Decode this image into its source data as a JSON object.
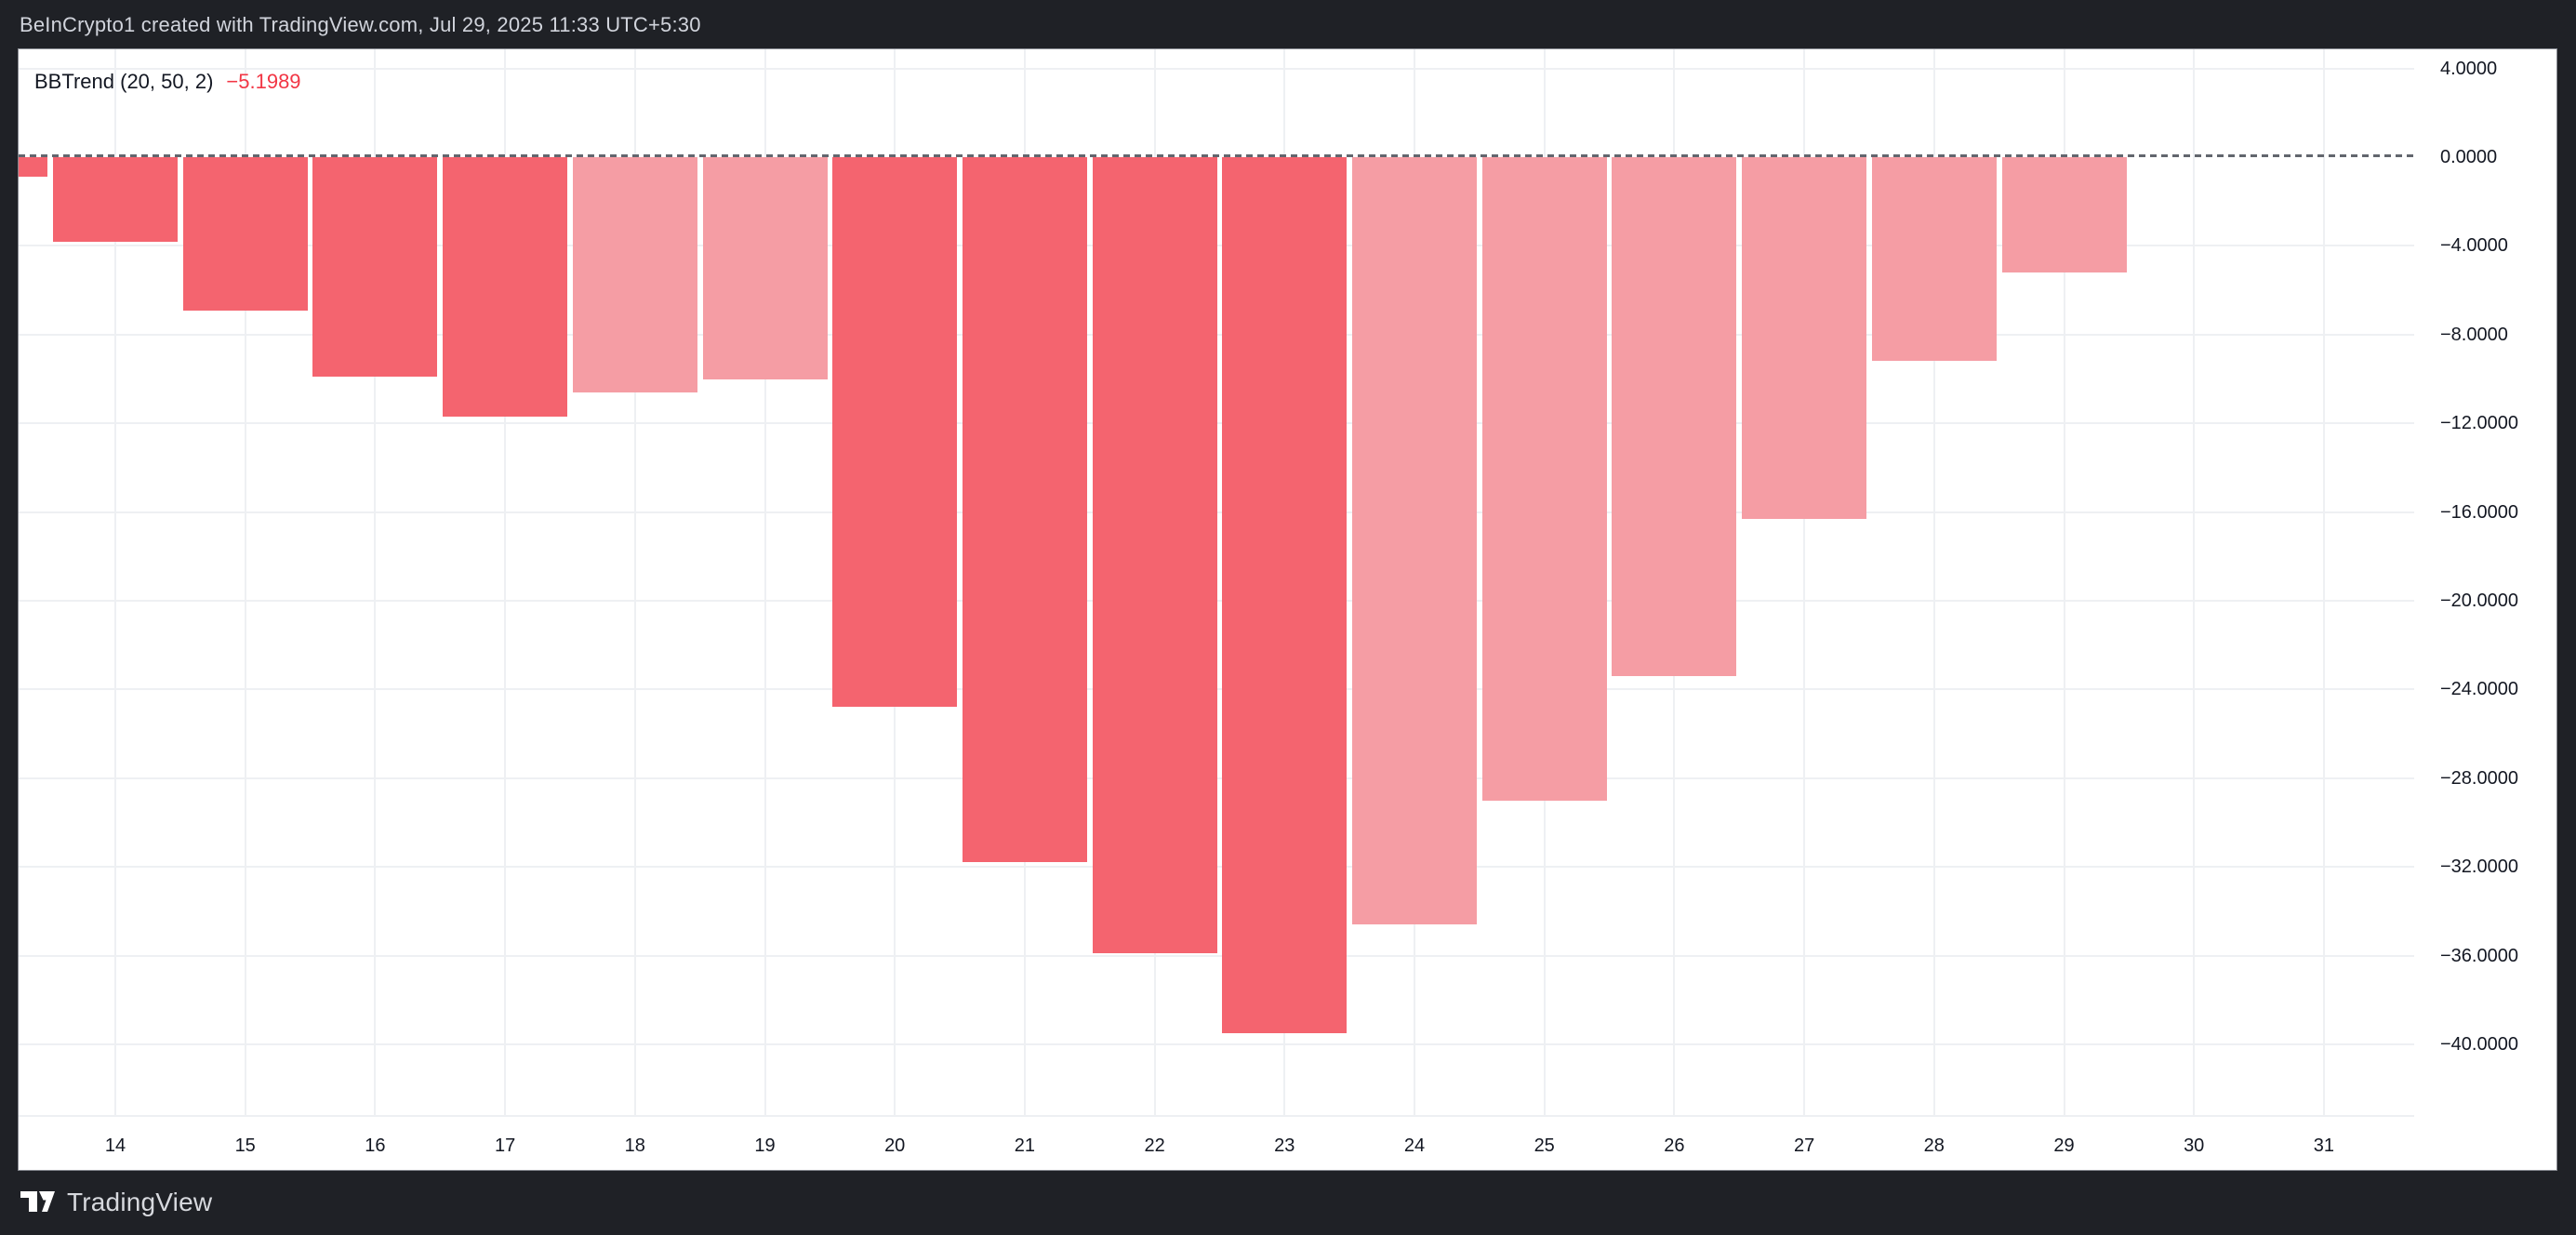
{
  "header": {
    "title": "BeInCrypto1 created with TradingView.com, Jul 29, 2025 11:33 UTC+5:30"
  },
  "legend": {
    "indicator": "BBTrend (20, 50, 2)",
    "value": "−5.1989",
    "value_color": "#f23645"
  },
  "footer": {
    "brand": "TradingView"
  },
  "chart_data": {
    "type": "bar",
    "title": "BBTrend (20, 50, 2)",
    "last_value": -5.1989,
    "xlabel": "",
    "ylabel": "",
    "ylim": [
      -44,
      5
    ],
    "grid": true,
    "legend_position": "top-left",
    "zero_line": 0,
    "x_ticks": [
      "14",
      "15",
      "16",
      "17",
      "18",
      "19",
      "20",
      "21",
      "22",
      "23",
      "24",
      "25",
      "26",
      "27",
      "28",
      "29",
      "30",
      "31"
    ],
    "y_ticks": [
      {
        "value": 4,
        "label": "4.0000"
      },
      {
        "value": 0,
        "label": "0.0000"
      },
      {
        "value": -4,
        "label": "−4.0000"
      },
      {
        "value": -8,
        "label": "−8.0000"
      },
      {
        "value": -12,
        "label": "−12.0000"
      },
      {
        "value": -16,
        "label": "−16.0000"
      },
      {
        "value": -20,
        "label": "−20.0000"
      },
      {
        "value": -24,
        "label": "−24.0000"
      },
      {
        "value": -28,
        "label": "−28.0000"
      },
      {
        "value": -32,
        "label": "−32.0000"
      },
      {
        "value": -36,
        "label": "−36.0000"
      },
      {
        "value": -40,
        "label": "−40.0000"
      }
    ],
    "bars": [
      {
        "x": 13,
        "value": -0.9,
        "tone": "strong"
      },
      {
        "x": 14,
        "value": -3.8,
        "tone": "strong"
      },
      {
        "x": 15,
        "value": -6.9,
        "tone": "strong"
      },
      {
        "x": 16,
        "value": -9.9,
        "tone": "strong"
      },
      {
        "x": 17,
        "value": -11.7,
        "tone": "strong"
      },
      {
        "x": 18,
        "value": -10.6,
        "tone": "weak"
      },
      {
        "x": 19,
        "value": -10.0,
        "tone": "weak"
      },
      {
        "x": 20,
        "value": -24.8,
        "tone": "strong"
      },
      {
        "x": 21,
        "value": -31.8,
        "tone": "strong"
      },
      {
        "x": 22,
        "value": -35.9,
        "tone": "strong"
      },
      {
        "x": 23,
        "value": -39.5,
        "tone": "strong"
      },
      {
        "x": 24,
        "value": -34.6,
        "tone": "weak"
      },
      {
        "x": 25,
        "value": -29.0,
        "tone": "weak"
      },
      {
        "x": 26,
        "value": -23.4,
        "tone": "weak"
      },
      {
        "x": 27,
        "value": -16.3,
        "tone": "weak"
      },
      {
        "x": 28,
        "value": -9.2,
        "tone": "weak"
      },
      {
        "x": 29,
        "value": -5.1989,
        "tone": "weak"
      }
    ],
    "colors": {
      "strong": "#f4646f",
      "weak": "#f59da4",
      "zero_dash": "#62666e",
      "grid": "#eef0f3",
      "panel_bg": "#ffffff",
      "frame_bg": "#1f2126"
    }
  }
}
